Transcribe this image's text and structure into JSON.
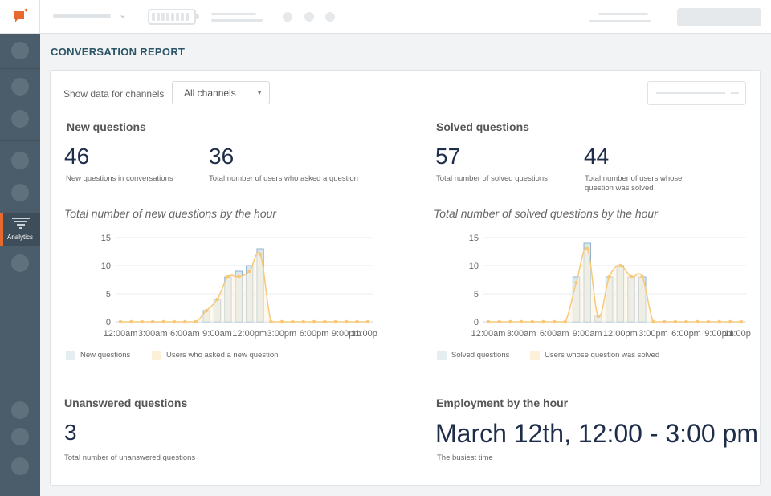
{
  "sidebar": {
    "active_item": "Analytics"
  },
  "page": {
    "title": "CONVERSATION REPORT"
  },
  "filter": {
    "label": "Show data for channels",
    "selected": "All channels"
  },
  "colors": {
    "bar_fill": "#dde8ec",
    "bar_stroke": "#8fb3cf",
    "line": "#f7c978",
    "line_fill": "#fdf3e0",
    "sidebar": "#4b5d6a",
    "accent": "#e8692f",
    "number": "#1e2d4a"
  },
  "new_questions": {
    "title": "New questions",
    "stat1": {
      "value": "46",
      "label": "New questions in conversations"
    },
    "stat2": {
      "value": "36",
      "label": "Total number of users who asked a question"
    }
  },
  "solved_questions": {
    "title": "Solved questions",
    "stat1": {
      "value": "57",
      "label": "Total number of solved questions"
    },
    "stat2": {
      "value": "44",
      "label": "Total number of users whose question was solved"
    }
  },
  "unanswered_questions": {
    "title": "Unanswered questions",
    "stat1": {
      "value": "3",
      "label": "Total number of unanswered questions"
    }
  },
  "employment": {
    "title": "Employment by the hour",
    "value": "March 12th, 12:00 - 3:00 pm",
    "label": "The busiest time"
  },
  "chart_data": [
    {
      "type": "bar",
      "title": "Total number of new questions by the hour",
      "x": [
        0,
        1,
        2,
        3,
        4,
        5,
        6,
        7,
        8,
        9,
        10,
        11,
        12,
        13,
        14,
        15,
        16,
        17,
        18,
        19,
        20,
        21,
        22,
        23
      ],
      "xticks": [
        {
          "x": 0,
          "label": "12:00am"
        },
        {
          "x": 3,
          "label": "3:00am"
        },
        {
          "x": 6,
          "label": "6:00am"
        },
        {
          "x": 9,
          "label": "9:00am"
        },
        {
          "x": 12,
          "label": "12:00pm"
        },
        {
          "x": 15,
          "label": "3:00pm"
        },
        {
          "x": 18,
          "label": "6:00pm"
        },
        {
          "x": 21,
          "label": "9:00pm"
        },
        {
          "x": 23,
          "label": "11:00pm"
        }
      ],
      "ylim": [
        0,
        15
      ],
      "yticks": [
        0,
        5,
        10,
        15
      ],
      "grid": true,
      "legend_position": "bottom-left",
      "series": [
        {
          "name": "New questions",
          "kind": "bar",
          "values": [
            0,
            0,
            0,
            0,
            0,
            0,
            0,
            0,
            2,
            4,
            8,
            9,
            10,
            13,
            0,
            0,
            0,
            0,
            0,
            0,
            0,
            0,
            0,
            0
          ]
        },
        {
          "name": "Users who asked a new question",
          "kind": "line",
          "values": [
            0,
            0,
            0,
            0,
            0,
            0,
            0,
            0,
            2,
            4,
            8,
            8,
            9,
            12,
            0,
            0,
            0,
            0,
            0,
            0,
            0,
            0,
            0,
            0
          ]
        }
      ]
    },
    {
      "type": "bar",
      "title": "Total number of solved questions by the hour",
      "x": [
        0,
        1,
        2,
        3,
        4,
        5,
        6,
        7,
        8,
        9,
        10,
        11,
        12,
        13,
        14,
        15,
        16,
        17,
        18,
        19,
        20,
        21,
        22,
        23
      ],
      "xticks": [
        {
          "x": 0,
          "label": "12:00am"
        },
        {
          "x": 3,
          "label": "3:00am"
        },
        {
          "x": 6,
          "label": "6:00am"
        },
        {
          "x": 9,
          "label": "9:00am"
        },
        {
          "x": 12,
          "label": "12:00pm"
        },
        {
          "x": 15,
          "label": "3:00pm"
        },
        {
          "x": 18,
          "label": "6:00pm"
        },
        {
          "x": 21,
          "label": "9:00pm"
        },
        {
          "x": 23,
          "label": "11:00pm"
        }
      ],
      "ylim": [
        0,
        15
      ],
      "yticks": [
        0,
        5,
        10,
        15
      ],
      "grid": true,
      "legend_position": "bottom-left",
      "series": [
        {
          "name": "Solved questions",
          "kind": "bar",
          "values": [
            0,
            0,
            0,
            0,
            0,
            0,
            0,
            0,
            8,
            14,
            1,
            8,
            10,
            8,
            8,
            0,
            0,
            0,
            0,
            0,
            0,
            0,
            0,
            0
          ]
        },
        {
          "name": "Users whose question was solved",
          "kind": "line",
          "values": [
            0,
            0,
            0,
            0,
            0,
            0,
            0,
            0,
            7,
            13,
            1,
            8,
            10,
            8,
            8,
            0,
            0,
            0,
            0,
            0,
            0,
            0,
            0,
            0
          ]
        }
      ]
    }
  ]
}
